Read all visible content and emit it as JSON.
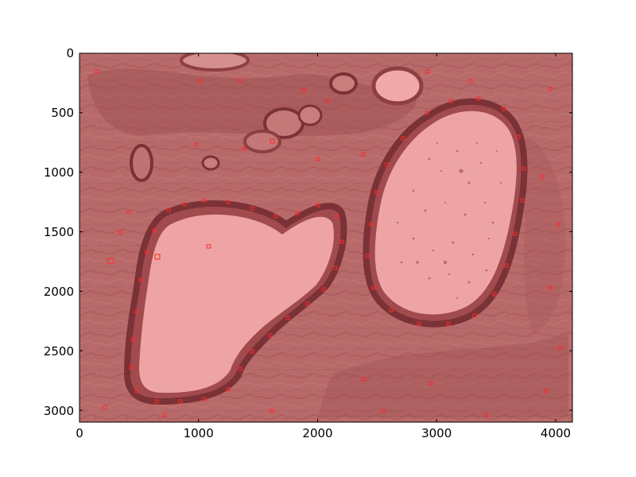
{
  "axes": {
    "x_ticks": [
      0,
      1000,
      2000,
      3000,
      4000
    ],
    "y_ticks": [
      0,
      500,
      1000,
      1500,
      2000,
      2500,
      3000
    ],
    "xlim": [
      0,
      4140
    ],
    "ylim": [
      3100,
      0
    ]
  },
  "colors": {
    "tissue_base": "#b86a6a",
    "tissue_dark": "#8e3f42",
    "lumen": "#eea4a4",
    "lumen_light": "#f1a8a8",
    "nuclei_box": "#ff2a2a",
    "axis": "#000000"
  },
  "image": {
    "description": "histology tissue section with two large vessel lumens and red detection boxes"
  }
}
